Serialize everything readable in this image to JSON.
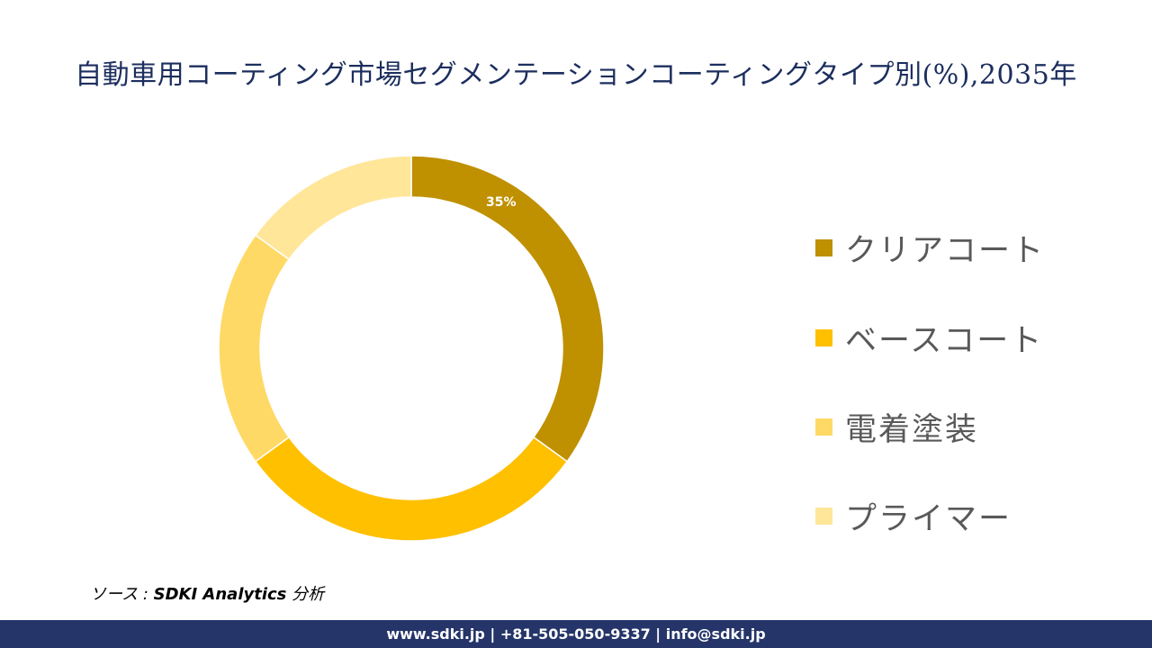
{
  "title": "自動車用コーティング市場セグメンテーションコーティングタイプ別(%),2035年",
  "chart_data": {
    "type": "pie",
    "variant": "donut",
    "title": "自動車用コーティング市場セグメンテーションコーティングタイプ別(%),2035年",
    "categories": [
      "クリアコート",
      "ベースコート",
      "電着塗装",
      "プライマー"
    ],
    "values": [
      35,
      30,
      20,
      15
    ],
    "colors": [
      "#BF9000",
      "#FFC000",
      "#FFD966",
      "#FFE699"
    ],
    "data_labels": [
      "35%",
      "",
      "",
      ""
    ],
    "legend_position": "right",
    "start_angle_deg": 0,
    "direction": "clockwise"
  },
  "legend": {
    "items": [
      {
        "label": "クリアコート",
        "color": "#BF9000"
      },
      {
        "label": "ベースコート",
        "color": "#FFC000"
      },
      {
        "label": "電着塗装",
        "color": "#FFD966"
      },
      {
        "label": "プライマー",
        "color": "#FFE699"
      }
    ]
  },
  "source": {
    "prefix": "ソース : ",
    "name": "SDKI Analytics",
    "suffix": " 分析"
  },
  "footer": {
    "text": "www.sdki.jp | +81-505-050-9337 | info@sdki.jp"
  }
}
